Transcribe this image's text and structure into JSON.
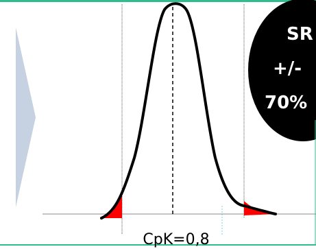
{
  "diagram": {
    "cpk_label": "CpK=0,8",
    "badge_lines": [
      "SR",
      "+/-",
      "70%"
    ],
    "colors": {
      "curve": "#000000",
      "tails": "#ff0000",
      "baseline": "#8a8a8a",
      "spec_lines": "#555555",
      "mean_line": "#000000",
      "arrow": "#c6d1e2",
      "badge_fill": "#000000",
      "badge_text": "#ffffff",
      "accent_line": "#2fbf8f"
    }
  }
}
